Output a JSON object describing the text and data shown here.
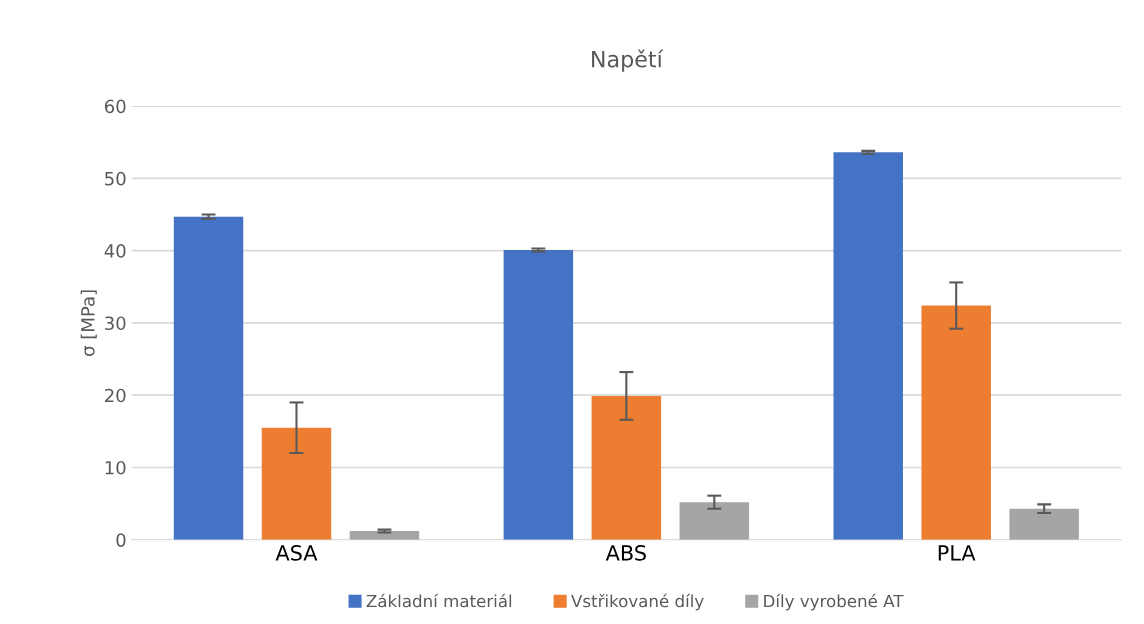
{
  "chart_data": {
    "type": "bar",
    "title": "Napětí",
    "ylabel": "σ [MPa]",
    "categories": [
      "ASA",
      "ABS",
      "PLA"
    ],
    "series": [
      {
        "name": "Základní materiál",
        "color": "#4472c4",
        "values": [
          44.7,
          40.1,
          53.6
        ],
        "errors": [
          0.3,
          0.2,
          0.2
        ]
      },
      {
        "name": "Vstřikované díly",
        "color": "#ed7d31",
        "values": [
          15.5,
          19.9,
          32.4
        ],
        "errors": [
          3.5,
          3.3,
          3.2
        ]
      },
      {
        "name": "Díly vyrobené AT",
        "color": "#a5a5a5",
        "values": [
          1.2,
          5.2,
          4.3
        ],
        "errors": [
          0.2,
          0.9,
          0.6
        ]
      }
    ],
    "ylim": [
      0,
      60
    ],
    "yticks": [
      0,
      10,
      20,
      30,
      40,
      50,
      60
    ],
    "grid": "y",
    "legend": "bottom"
  }
}
